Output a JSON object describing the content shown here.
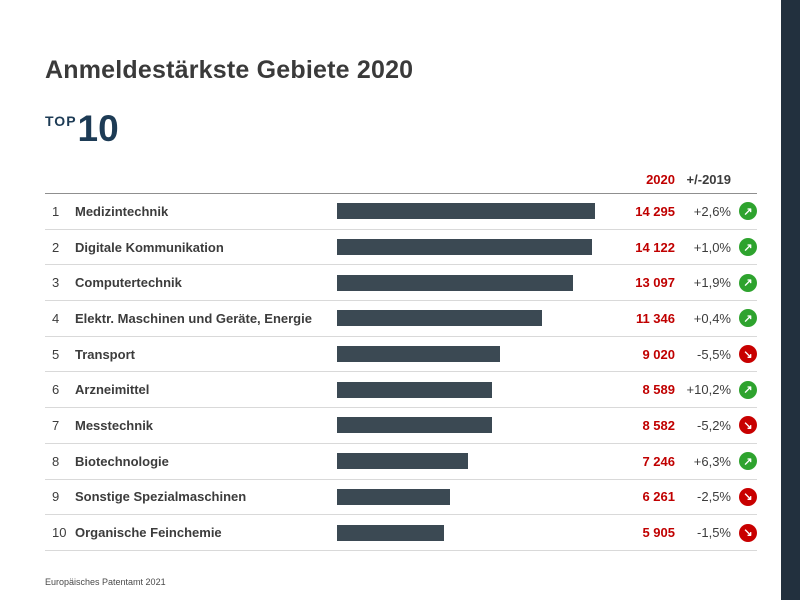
{
  "page": {
    "title": "Anmeldestärkste Gebiete 2020",
    "top_label": "TOP",
    "top_number": "10",
    "source": "Europäisches Patentamt 2021"
  },
  "table_header": {
    "year": "2020",
    "change": "+/-2019"
  },
  "colors": {
    "bar": "#3b4953",
    "value_text": "#c00000",
    "trend_up": "#2ea32e",
    "trend_down": "#c80000",
    "accent_strip": "#22303e",
    "top10_text": "#1d3b55"
  },
  "chart_data": {
    "type": "bar",
    "orientation": "horizontal",
    "title": "Anmeldestärkste Gebiete 2020",
    "subtitle": "TOP 10",
    "value_column_label": "2020",
    "change_column_label": "+/-2019",
    "xlim": [
      0,
      14295
    ],
    "ranks": [
      "1",
      "2",
      "3",
      "4",
      "5",
      "6",
      "7",
      "8",
      "9",
      "10"
    ],
    "categories": [
      "Medizintechnik",
      "Digitale Kommunikation",
      "Computertechnik",
      "Elektr. Maschinen und Geräte, Energie",
      "Transport",
      "Arzneimittel",
      "Messtechnik",
      "Biotechnologie",
      "Sonstige Spezialmaschinen",
      "Organische Feinchemie"
    ],
    "values": [
      14295,
      14122,
      13097,
      11346,
      9020,
      8589,
      8582,
      7246,
      6261,
      5905
    ],
    "value_labels": [
      "14 295",
      "14 122",
      "13 097",
      "11 346",
      "9 020",
      "8 589",
      "8 582",
      "7 246",
      "6 261",
      "5 905"
    ],
    "changes": [
      "+2,6%",
      "+1,0%",
      "+1,9%",
      "+0,4%",
      "-5,5%",
      "+10,2%",
      "-5,2%",
      "+6,3%",
      "-2,5%",
      "-1,5%"
    ],
    "directions": [
      "up",
      "up",
      "up",
      "up",
      "down",
      "up",
      "down",
      "up",
      "down",
      "down"
    ],
    "source": "Europäisches Patentamt 2021"
  }
}
